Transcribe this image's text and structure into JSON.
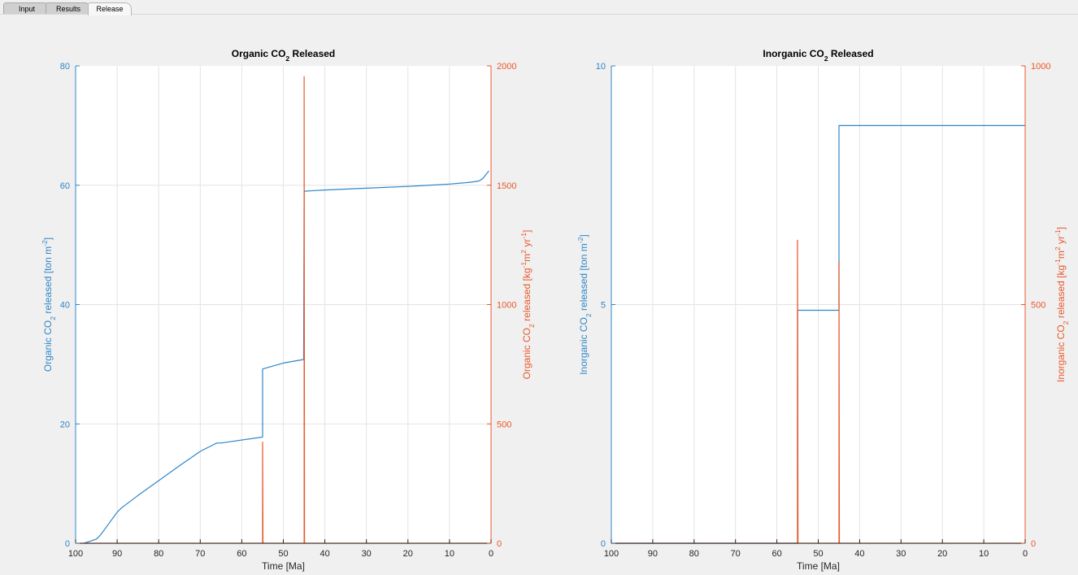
{
  "tabs": [
    {
      "label": "Input",
      "active": false
    },
    {
      "label": "Results",
      "active": false
    },
    {
      "label": "Release",
      "active": true
    }
  ],
  "colors": {
    "blue": "#2e86c9",
    "orange": "#e8582a",
    "grid": "#e3e3e3"
  },
  "chart_data": [
    {
      "type": "line",
      "title": {
        "main": "Organic CO",
        "sub": "2",
        "tail": " Released"
      },
      "xlabel": "Time [Ma]",
      "xlim": [
        100,
        0
      ],
      "x_reversed": true,
      "xticks": [
        100,
        90,
        80,
        70,
        60,
        50,
        40,
        30,
        20,
        10,
        0
      ],
      "ylim_left": [
        0,
        80
      ],
      "yticks_left": [
        0,
        20,
        40,
        60,
        80
      ],
      "ylim_right": [
        0,
        2000
      ],
      "yticks_right": [
        0,
        500,
        1000,
        1500,
        2000
      ],
      "ylabel_left": [
        [
          "Organic CO",
          0
        ],
        [
          "2",
          -1
        ],
        [
          "  released [ton m",
          0
        ],
        [
          "-2",
          1
        ],
        [
          "]",
          0
        ]
      ],
      "ylabel_right": [
        [
          "Organic CO",
          0
        ],
        [
          "2",
          -1
        ],
        [
          "  released [kg",
          0
        ],
        [
          "-1",
          1
        ],
        [
          "m",
          0
        ],
        [
          "2",
          1
        ],
        [
          " yr",
          0
        ],
        [
          "-1",
          1
        ],
        [
          "]",
          0
        ]
      ],
      "grid": true,
      "series": [
        {
          "axis": "left",
          "color": "blue",
          "x": [
            98,
            95,
            94,
            92,
            90,
            89,
            85,
            80,
            75,
            70,
            66,
            65,
            55,
            55,
            50,
            45.1,
            45,
            40,
            30,
            20,
            10,
            5,
            3,
            2,
            1,
            0.5
          ],
          "y": [
            0,
            0.7,
            1.4,
            3.3,
            5.2,
            5.9,
            8,
            10.5,
            13,
            15.4,
            16.8,
            16.8,
            17.8,
            29.2,
            30.2,
            30.8,
            59,
            59.2,
            59.5,
            59.8,
            60.2,
            60.5,
            60.7,
            61.1,
            62,
            62.4
          ]
        },
        {
          "axis": "right",
          "color": "orange",
          "x": [
            100,
            55.1,
            55,
            55,
            54.9,
            45.1,
            45,
            45,
            44.9,
            0
          ],
          "y": [
            0,
            0,
            0,
            424,
            0,
            0,
            0,
            1955,
            0,
            0
          ]
        }
      ]
    },
    {
      "type": "line",
      "title": {
        "main": "Inorganic CO",
        "sub": "2",
        "tail": " Released"
      },
      "xlabel": "Time [Ma]",
      "xlim": [
        100,
        0
      ],
      "x_reversed": true,
      "xticks": [
        100,
        90,
        80,
        70,
        60,
        50,
        40,
        30,
        20,
        10,
        0
      ],
      "ylim_left": [
        0,
        10
      ],
      "yticks_left": [
        0,
        5,
        10
      ],
      "ylim_right": [
        0,
        1000
      ],
      "yticks_right": [
        0,
        500,
        1000
      ],
      "ylabel_left": [
        [
          "Inorganic CO",
          0
        ],
        [
          "2",
          -1
        ],
        [
          "  released [ton m",
          0
        ],
        [
          "-2",
          1
        ],
        [
          "]",
          0
        ]
      ],
      "ylabel_right": [
        [
          "Inorganic CO",
          0
        ],
        [
          "2",
          -1
        ],
        [
          "  released [kg",
          0
        ],
        [
          "-1",
          1
        ],
        [
          "m",
          0
        ],
        [
          "2",
          1
        ],
        [
          " yr",
          0
        ],
        [
          "-1",
          1
        ],
        [
          "]",
          0
        ]
      ],
      "grid": true,
      "series": [
        {
          "axis": "left",
          "color": "blue",
          "x": [
            100,
            55,
            55,
            45,
            45,
            0
          ],
          "y": [
            0,
            0,
            4.88,
            4.88,
            8.75,
            8.75
          ]
        },
        {
          "axis": "right",
          "color": "orange",
          "x": [
            100,
            55.1,
            55,
            55,
            54.9,
            45.1,
            45,
            45,
            44.9,
            0
          ],
          "y": [
            0,
            0,
            0,
            635,
            0,
            0,
            0,
            590,
            0,
            0
          ]
        }
      ]
    }
  ]
}
